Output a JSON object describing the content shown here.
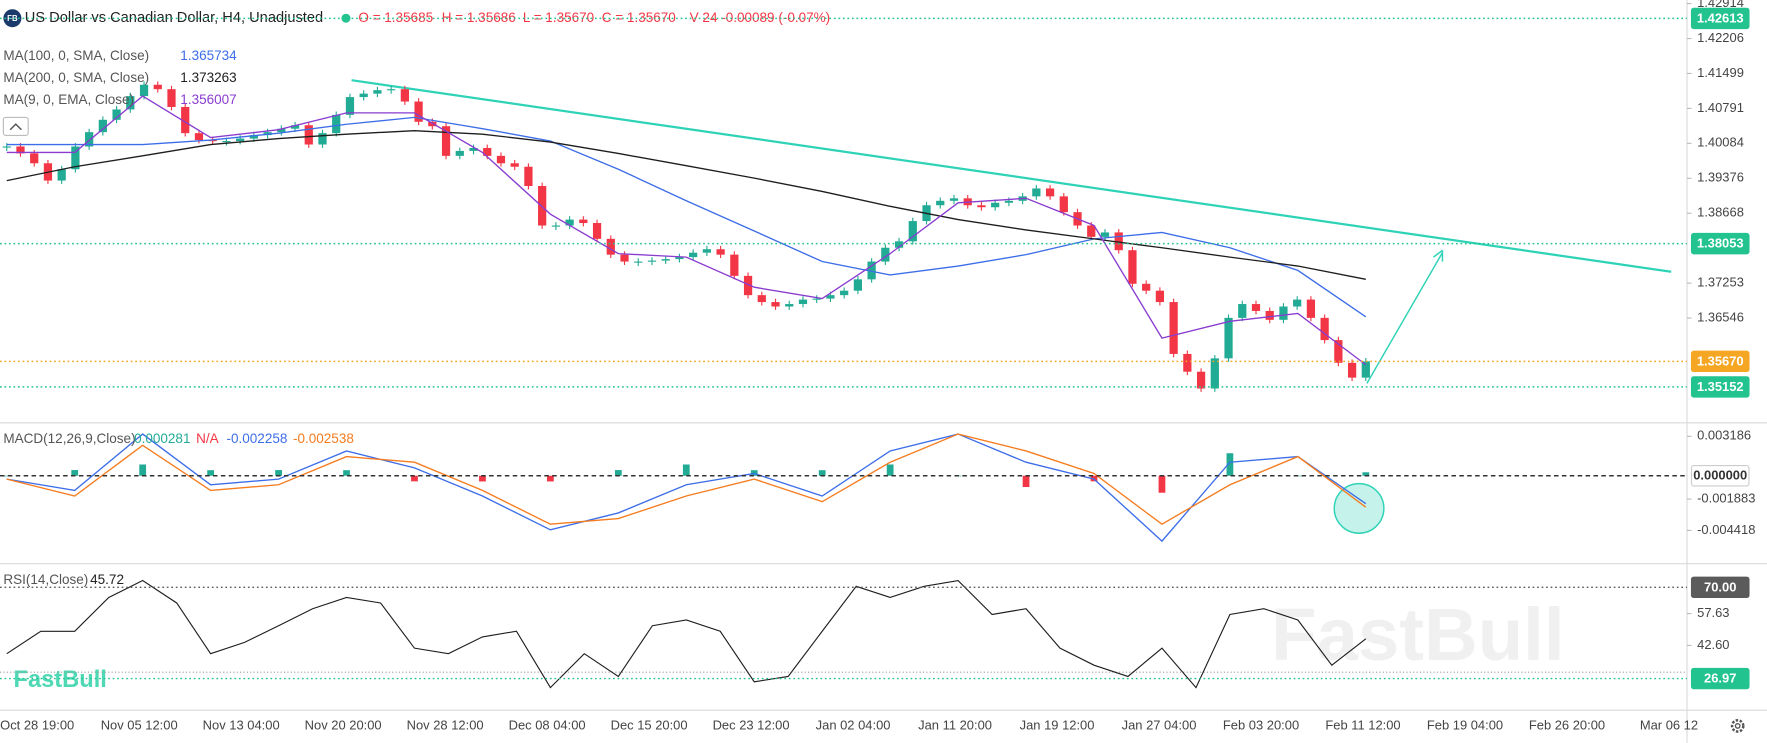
{
  "header": {
    "title": "US Dollar vs Canadian Dollar, H4, Unadjusted",
    "ohlc": [
      "O = 1.35685",
      "H = 1.35686",
      "L = 1.35670",
      "C = 1.35670",
      "V 24"
    ],
    "change": "-0.00089 (-0.07%)"
  },
  "watermark": "FastBull",
  "x_labels": [
    "Oct 28 19:00",
    "Nov 05 12:00",
    "Nov 13 04:00",
    "Nov 20 20:00",
    "Nov 28 12:00",
    "Dec 08 04:00",
    "Dec 15 20:00",
    "Dec 23 12:00",
    "Jan 02 04:00",
    "Jan 11 20:00",
    "Jan 19 12:00",
    "Jan 27 04:00",
    "Feb 03 20:00",
    "Feb 11 12:00",
    "Feb 19 04:00",
    "Feb 26 20:00",
    "Mar 06 12"
  ],
  "chart_data": [
    {
      "type": "candlestick",
      "ylim": [
        1.34426,
        1.42982
      ],
      "yticks": [
        1.42914,
        1.42206,
        1.41499,
        1.40791,
        1.40084,
        1.39376,
        1.38668,
        1.37253,
        1.36546
      ],
      "price_lines": [
        {
          "value": 1.42613,
          "color": "#22c38e"
        },
        {
          "value": 1.38053,
          "color": "#22c38e"
        },
        {
          "value": 1.3567,
          "label": "1.35670",
          "color": "#f5a623"
        },
        {
          "value": 1.35152,
          "color": "#22c38e"
        }
      ],
      "up_color": "#22ab94",
      "down_color": "#f23645",
      "closes": [
        1.4002,
        1.3988,
        1.3968,
        1.3933,
        1.3956,
        1.4002,
        1.4031,
        1.4056,
        1.4077,
        1.4104,
        1.4127,
        1.4118,
        1.4082,
        1.4029,
        1.4015,
        1.4013,
        1.4013,
        1.4018,
        1.4025,
        1.4031,
        1.4038,
        1.4045,
        1.4006,
        1.4029,
        1.4066,
        1.4102,
        1.4109,
        1.4116,
        1.4118,
        1.4093,
        1.4052,
        1.4043,
        1.3983,
        1.3993,
        1.3999,
        1.3983,
        1.3968,
        1.3961,
        1.3922,
        1.3842,
        1.3842,
        1.3854,
        1.3847,
        1.3815,
        1.3783,
        1.3769,
        1.3769,
        1.3771,
        1.3774,
        1.3778,
        1.3787,
        1.3794,
        1.3783,
        1.374,
        1.3701,
        1.3687,
        1.3678,
        1.3683,
        1.3692,
        1.3694,
        1.3701,
        1.371,
        1.3733,
        1.3769,
        1.3797,
        1.381,
        1.3851,
        1.3883,
        1.3892,
        1.3897,
        1.3883,
        1.3879,
        1.3888,
        1.3892,
        1.3901,
        1.3917,
        1.3901,
        1.3869,
        1.3842,
        1.3819,
        1.3828,
        1.3792,
        1.3724,
        1.371,
        1.3687,
        1.3582,
        1.3546,
        1.3512,
        1.3573,
        1.3655,
        1.3683,
        1.3669,
        1.3651,
        1.3678,
        1.3692,
        1.3655,
        1.361,
        1.3564,
        1.3534,
        1.3567
      ],
      "series": [
        {
          "name": "MA(100, 0, SMA, Close)",
          "value_label": "1.365734",
          "color": "#3d6ee8",
          "values": [
            1.4006,
            1.4006,
            1.4006,
            1.4015,
            1.4029,
            1.4047,
            1.4061,
            1.4038,
            1.4013,
            1.3956,
            1.3892,
            1.3831,
            1.3769,
            1.3742,
            1.376,
            1.3783,
            1.3815,
            1.3828,
            1.3797,
            1.3751,
            1.3657
          ]
        },
        {
          "name": "MA(200, 0, SMA, Close)",
          "value_label": "1.373263",
          "color": "#1e1e1e",
          "values": [
            1.3933,
            1.3961,
            1.3983,
            1.4006,
            1.4018,
            1.4027,
            1.4034,
            1.4027,
            1.4011,
            1.3988,
            1.3963,
            1.3938,
            1.3911,
            1.3881,
            1.3854,
            1.3833,
            1.3815,
            1.3797,
            1.3778,
            1.376,
            1.3733
          ]
        },
        {
          "name": "MA(9, 0, EMA, Close)",
          "value_label": "1.356007",
          "color": "#8a3ccf",
          "values": [
            1.399,
            1.399,
            1.4104,
            1.402,
            1.4036,
            1.407,
            1.407,
            1.399,
            1.3865,
            1.3785,
            1.3778,
            1.3717,
            1.3694,
            1.3785,
            1.3888,
            1.3897,
            1.3842,
            1.3614,
            1.3648,
            1.3664,
            1.356
          ]
        }
      ]
    },
    {
      "type": "macd",
      "name": "MACD(12,26,9,Close)",
      "ylim": [
        -0.0071,
        0.00428
      ],
      "yticks": [
        0.003186,
        -0.001883,
        -0.004418
      ],
      "price_lines": [
        {
          "value": 0,
          "label": "0.000000",
          "color": "#ffffff",
          "text_color": "#333333"
        }
      ],
      "legend_values": [
        {
          "text": "0.000281",
          "color": "#22ab94"
        },
        {
          "text": "N/A",
          "color": "#f23645"
        },
        {
          "text": "-0.002258",
          "color": "#3d6ee8"
        },
        {
          "text": "-0.002538",
          "color": "#f57c1f"
        }
      ],
      "histogram": {
        "up_color": "#22ab94",
        "down_color": "#f23645",
        "values": [
          0,
          0.00046,
          0.00091,
          0.00045,
          0.00046,
          0.00045,
          -0.00045,
          -0.00046,
          -0.00046,
          0.00046,
          0.00091,
          0.00045,
          0.00045,
          0.00091,
          0,
          -0.00091,
          -0.00045,
          -0.00137,
          0.00182,
          0,
          0.000281
        ]
      },
      "series": [
        {
          "color": "#3d6ee8",
          "values": [
            -0.00027,
            -0.00118,
            0.00337,
            -0.00073,
            -0.00027,
            0.002,
            0.00064,
            -0.00164,
            -0.00437,
            -0.003,
            -0.00073,
            0.00018,
            -0.00164,
            0.002,
            0.00337,
            0.00109,
            -0.00027,
            -0.00528,
            0.00109,
            0.00155,
            -0.002258
          ]
        },
        {
          "color": "#f57c1f",
          "values": [
            -0.00027,
            -0.00164,
            0.00246,
            -0.00118,
            -0.00073,
            0.00155,
            0.00109,
            -0.00118,
            -0.00391,
            -0.00346,
            -0.00164,
            -0.00027,
            -0.00209,
            0.00109,
            0.00337,
            0.002,
            0.00018,
            -0.00391,
            -0.00073,
            0.00155,
            -0.002538
          ]
        }
      ]
    },
    {
      "type": "line",
      "name": "RSI(14,Close)",
      "value_label": "45.72",
      "color": "#1e1e1e",
      "ylim": [
        12.09,
        81.16
      ],
      "yticks": [
        57.63,
        {
          "value": 42.6,
          "label": "42.60"
        }
      ],
      "levels": [
        30
      ],
      "price_lines": [
        {
          "value": 70,
          "label": "70.00",
          "color": "#5b5b5b"
        },
        {
          "value": 26.97,
          "color": "#22c38e"
        }
      ],
      "values": [
        38.7,
        49.3,
        49.3,
        65.2,
        73.2,
        62.6,
        38.7,
        44.0,
        51.9,
        59.9,
        65.2,
        62.6,
        41.3,
        38.7,
        46.6,
        49.3,
        22.7,
        38.7,
        28.0,
        51.9,
        54.6,
        49.3,
        25.4,
        28.0,
        49.3,
        70.5,
        65.2,
        70.5,
        73.2,
        57.2,
        59.9,
        41.3,
        33.3,
        28.0,
        41.3,
        22.7,
        57.2,
        59.9,
        54.6,
        33.3,
        45.72
      ]
    }
  ]
}
